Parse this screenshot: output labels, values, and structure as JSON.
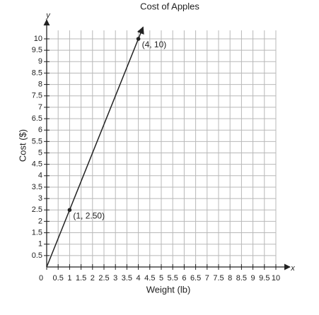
{
  "chart_data": {
    "type": "line",
    "title": "Cost of Apples",
    "x_label": "Weight (lb)",
    "y_label": "Cost ($)",
    "x_axis_name": "x",
    "y_axis_name": "y",
    "x": [
      0,
      1,
      4
    ],
    "series": [
      {
        "color": "#222222",
        "values": [
          0,
          2.5,
          10
        ]
      }
    ],
    "annotations": [
      {
        "text": "(1, 2.50)",
        "x": 1,
        "y": 2.5
      },
      {
        "text": "(4, 10)",
        "x": 4,
        "y": 10
      }
    ],
    "xlim": [
      0,
      10
    ],
    "ylim": [
      0,
      10
    ],
    "xticks": [
      0,
      0.5,
      1,
      1.5,
      2,
      2.5,
      3,
      3.5,
      4,
      4.5,
      5,
      5.5,
      6,
      6.5,
      7,
      7.5,
      8,
      8.5,
      9,
      9.5,
      10
    ],
    "yticks": [
      0.5,
      1,
      1.5,
      2,
      2.5,
      3,
      3.5,
      4,
      4.5,
      5,
      5.5,
      6,
      6.5,
      7,
      7.5,
      8,
      8.5,
      9,
      9.5,
      10
    ],
    "grid": true
  }
}
